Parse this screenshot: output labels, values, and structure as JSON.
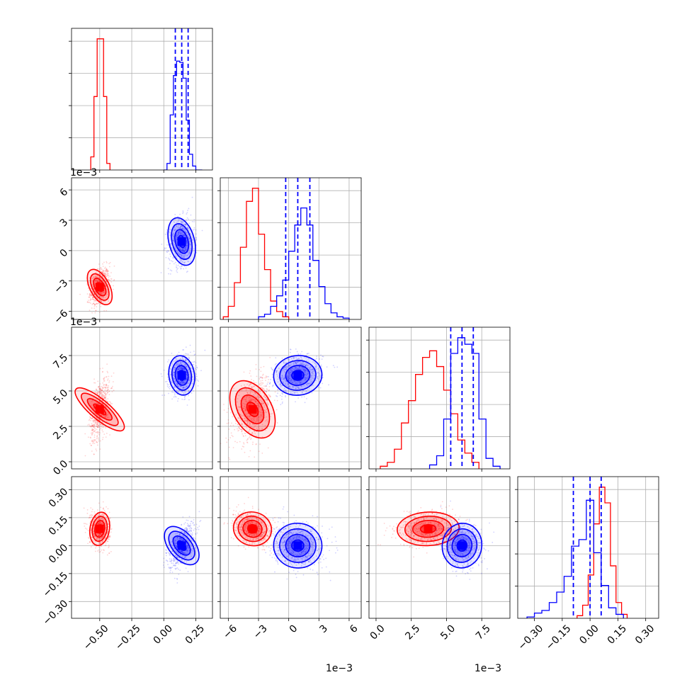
{
  "chart_data": {
    "type": "corner",
    "grid": true,
    "colors": {
      "red": "#ff0000",
      "blue": "#0000ff"
    },
    "dims": [
      {
        "range": [
          -0.72,
          0.38
        ],
        "ticks": [
          -0.5,
          -0.25,
          0.0,
          0.25
        ],
        "tick_labels": [
          "−0.50",
          "−0.25",
          "0.00",
          "0.25"
        ],
        "offset": "",
        "hist_ymax": 1.0
      },
      {
        "range": [
          -6.8,
          7.2
        ],
        "ticks": [
          -6,
          -3,
          0,
          3,
          6
        ],
        "tick_labels": [
          "−6",
          "−3",
          "0",
          "3",
          "6"
        ],
        "offset": "1e−3",
        "hist_ymax": 1.0
      },
      {
        "range": [
          -0.5,
          9.5
        ],
        "ticks": [
          0.0,
          2.5,
          5.0,
          7.5
        ],
        "tick_labels": [
          "0.0",
          "2.5",
          "5.0",
          "7.5"
        ],
        "offset": "1e−3",
        "hist_ymax": 1.0
      },
      {
        "range": [
          -0.39,
          0.37
        ],
        "ticks": [
          -0.3,
          -0.15,
          0.0,
          0.15,
          0.3
        ],
        "tick_labels": [
          "−0.30",
          "−0.15",
          "0.00",
          "0.15",
          "0.30"
        ],
        "offset": "",
        "hist_ymax": 1.0
      }
    ],
    "series": [
      {
        "color": "red",
        "mean": [
          -0.5,
          -3.6,
          3.7,
          0.09
        ],
        "std": [
          0.038,
          0.95,
          1.1,
          0.045
        ],
        "hist": [
          {
            "edges": [
              -0.57,
              -0.545,
              -0.52,
              -0.495,
              -0.47,
              -0.445,
              -0.42
            ],
            "values": [
              0.1,
              0.56,
              1.0,
              1.0,
              0.56,
              0.05,
              0.0
            ]
          },
          {
            "edges": [
              -6.5,
              -6.0,
              -5.4,
              -4.8,
              -4.2,
              -3.6,
              -3.0,
              -2.4,
              -1.8,
              -1.2,
              -0.6,
              0.0
            ],
            "values": [
              0.02,
              0.1,
              0.28,
              0.55,
              0.9,
              1.0,
              0.65,
              0.38,
              0.14,
              0.06,
              0.02
            ]
          },
          {
            "edges": [
              0.3,
              0.8,
              1.3,
              1.8,
              2.3,
              2.8,
              3.3,
              3.8,
              4.3,
              4.8,
              5.3,
              5.8,
              6.3,
              6.8,
              7.3
            ],
            "values": [
              0.02,
              0.05,
              0.15,
              0.35,
              0.52,
              0.72,
              0.85,
              0.9,
              0.78,
              0.6,
              0.42,
              0.22,
              0.12,
              0.05
            ]
          },
          {
            "edges": [
              -0.07,
              -0.04,
              -0.01,
              0.02,
              0.05,
              0.08,
              0.11,
              0.14,
              0.17,
              0.2
            ],
            "values": [
              0.02,
              0.1,
              0.33,
              0.72,
              1.0,
              0.88,
              0.4,
              0.12,
              0.03
            ]
          }
        ]
      },
      {
        "color": "blue",
        "mean": [
          0.14,
          0.9,
          6.1,
          0.0
        ],
        "std": [
          0.05,
          1.2,
          0.7,
          0.06
        ],
        "quantiles": [
          [
            0.09,
            0.14,
            0.19
          ],
          [
            -0.3,
            0.9,
            2.1
          ],
          [
            5.3,
            6.1,
            6.9
          ],
          [
            -0.09,
            0.0,
            0.06
          ]
        ],
        "hist": [
          {
            "edges": [
              0.0,
              0.025,
              0.05,
              0.075,
              0.1,
              0.125,
              0.15,
              0.175,
              0.2,
              0.225,
              0.25,
              0.275,
              0.3
            ],
            "values": [
              0.0,
              0.05,
              0.42,
              0.72,
              0.83,
              0.82,
              0.7,
              0.38,
              0.12,
              0.03,
              0.0,
              0.0
            ]
          },
          {
            "edges": [
              -3.0,
              -2.4,
              -1.8,
              -1.2,
              -0.6,
              0.0,
              0.6,
              1.2,
              1.8,
              2.4,
              3.0,
              3.6,
              4.2,
              4.8,
              5.4,
              6.0
            ],
            "values": [
              0.02,
              0.04,
              0.1,
              0.18,
              0.3,
              0.52,
              0.72,
              0.85,
              0.72,
              0.45,
              0.25,
              0.12,
              0.05,
              0.02,
              0.01
            ]
          },
          {
            "edges": [
              3.8,
              4.3,
              4.8,
              5.3,
              5.8,
              6.3,
              6.8,
              7.3,
              7.8,
              8.3,
              8.8
            ],
            "values": [
              0.03,
              0.1,
              0.38,
              0.88,
              1.0,
              0.95,
              0.88,
              0.38,
              0.08,
              0.02
            ]
          },
          {
            "edges": [
              -0.34,
              -0.3,
              -0.26,
              -0.22,
              -0.18,
              -0.14,
              -0.1,
              -0.06,
              -0.02,
              0.02,
              0.06,
              0.1,
              0.14,
              0.18
            ],
            "values": [
              0.01,
              0.04,
              0.06,
              0.12,
              0.2,
              0.32,
              0.55,
              0.6,
              0.9,
              0.5,
              0.25,
              0.08,
              0.03
            ]
          }
        ]
      }
    ]
  }
}
